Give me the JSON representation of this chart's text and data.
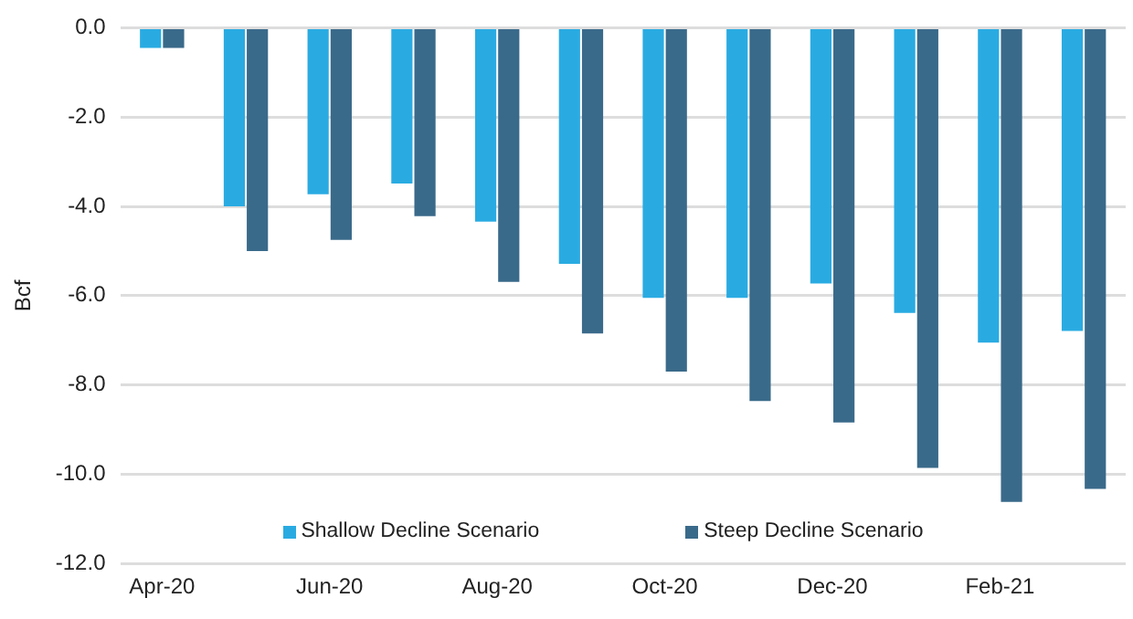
{
  "chart_data": {
    "type": "bar",
    "ylabel": "Bcf",
    "categories": [
      "Apr-20",
      null,
      "Jun-20",
      null,
      "Aug-20",
      null,
      "Oct-20",
      null,
      "Dec-20",
      null,
      "Feb-21",
      null
    ],
    "series": [
      {
        "name": "Shallow Decline Scenario",
        "color": "#29abe2",
        "values": [
          -0.45,
          -4.0,
          -3.73,
          -3.49,
          -4.34,
          -5.29,
          -6.05,
          -6.05,
          -5.73,
          -6.39,
          -7.05,
          -6.79
        ]
      },
      {
        "name": "Steep Decline Scenario",
        "color": "#3a6a8a",
        "values": [
          -0.45,
          -5.0,
          -4.75,
          -4.22,
          -5.69,
          -6.85,
          -7.7,
          -8.36,
          -8.84,
          -9.86,
          -10.62,
          -10.33
        ]
      }
    ],
    "ylim": [
      -12,
      0
    ],
    "yticks": [
      {
        "value": -12,
        "label": "-12.0"
      },
      {
        "value": -10,
        "label": "-10.0"
      },
      {
        "value": -8,
        "label": "-8.0"
      },
      {
        "value": -6,
        "label": "-6.0"
      },
      {
        "value": -4,
        "label": "-4.0"
      },
      {
        "value": -2,
        "label": "-2.0"
      },
      {
        "value": 0,
        "label": "0.0"
      }
    ],
    "grid": "y",
    "legend": "bottom"
  }
}
